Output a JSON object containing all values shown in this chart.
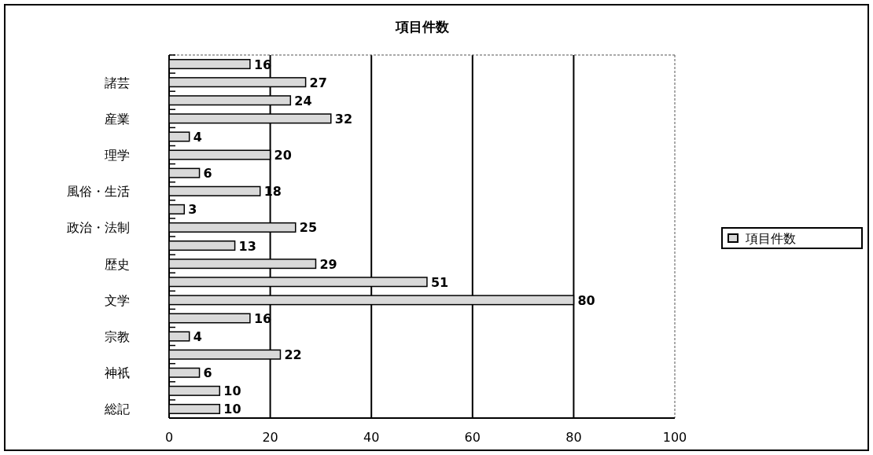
{
  "chart_data": {
    "type": "bar",
    "orientation": "horizontal",
    "title": "項目件数",
    "categories": [
      null,
      "諸芸",
      null,
      "産業",
      null,
      "理学",
      null,
      "風俗・生活",
      null,
      "政治・法制",
      null,
      "歴史",
      null,
      "文学",
      null,
      "宗教",
      null,
      "神祇",
      null,
      "総記"
    ],
    "series": [
      {
        "name": "項目件数",
        "color": "#d9d9d9",
        "values": [
          16,
          27,
          24,
          32,
          4,
          20,
          6,
          18,
          3,
          25,
          13,
          29,
          51,
          80,
          16,
          4,
          22,
          6,
          10,
          10
        ]
      }
    ],
    "xlim": [
      0,
      100
    ],
    "xticks": [
      0,
      20,
      40,
      60,
      80,
      100
    ],
    "grid": "x",
    "legend": "right",
    "data_labels": true
  }
}
